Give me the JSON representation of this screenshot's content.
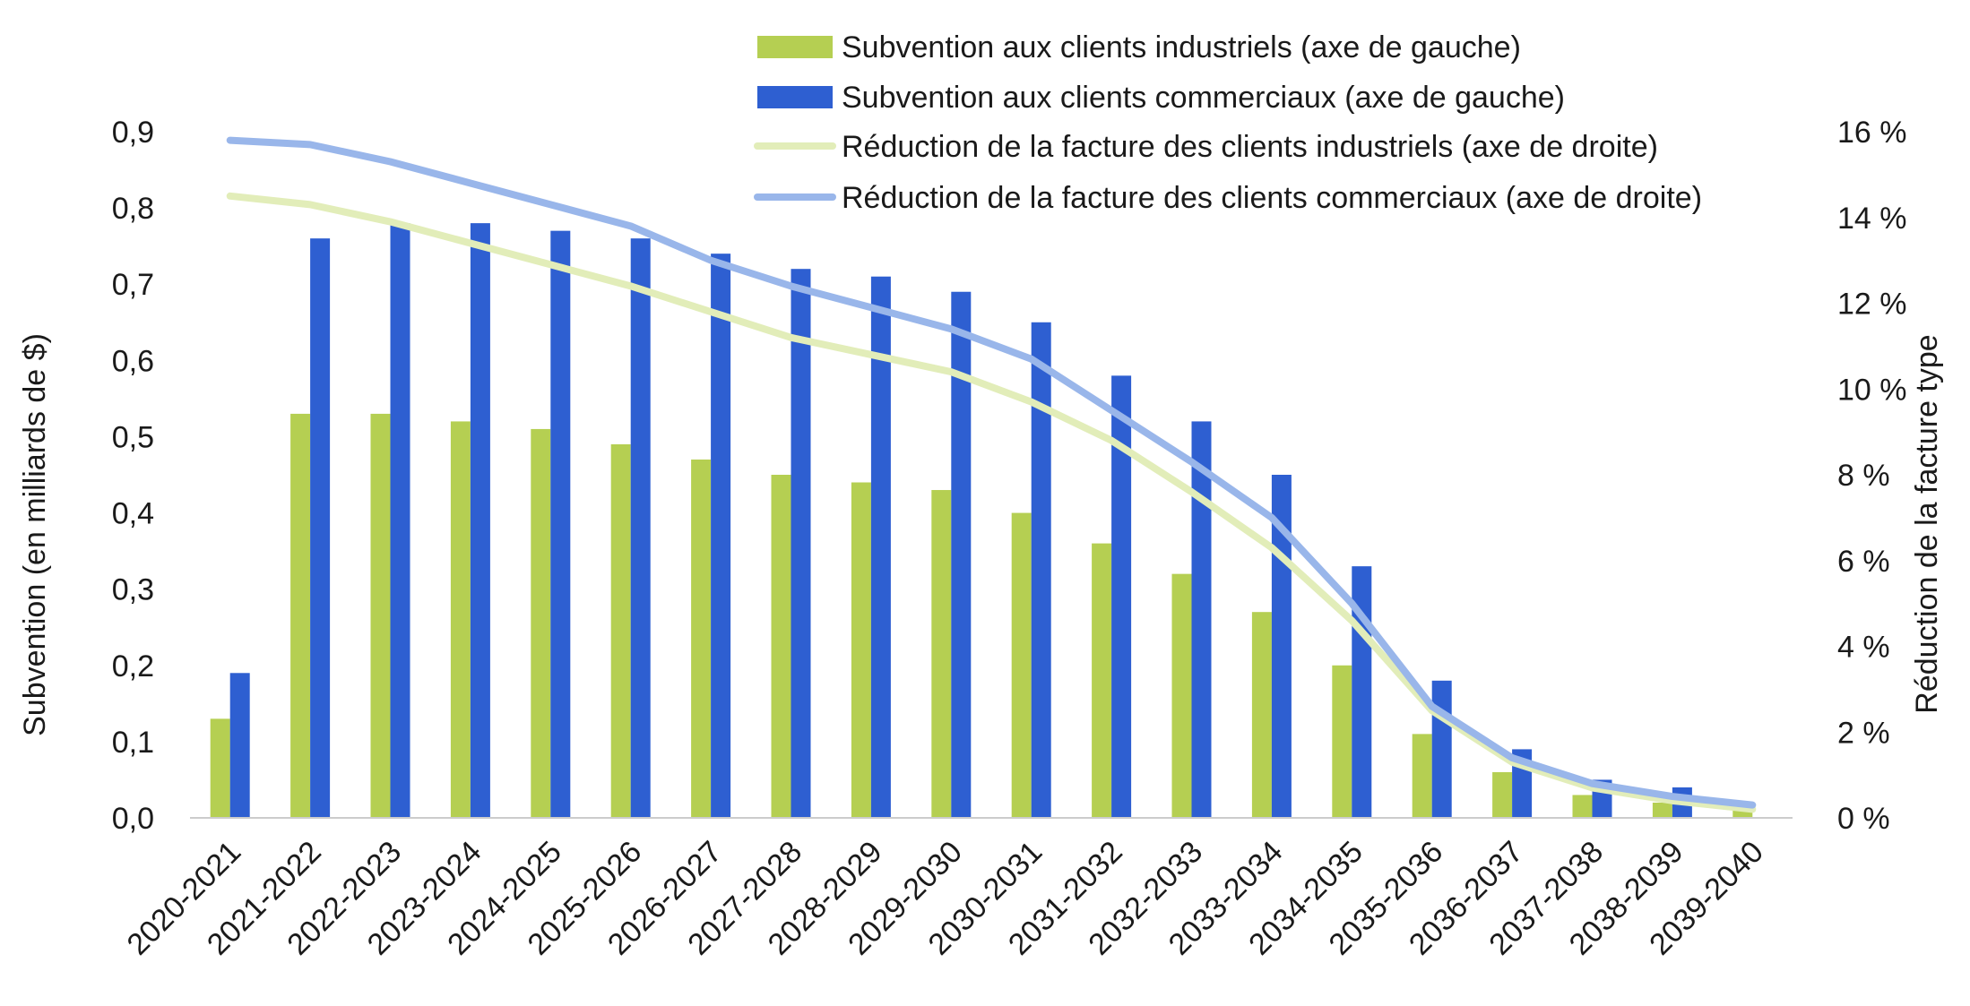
{
  "chart_data": {
    "type": "bar",
    "categories": [
      "2020-2021",
      "2021-2022",
      "2022-2023",
      "2023-2024",
      "2024-2025",
      "2025-2026",
      "2026-2027",
      "2027-2028",
      "2028-2029",
      "2029-2030",
      "2030-2031",
      "2031-2032",
      "2032-2033",
      "2033-2034",
      "2034-2035",
      "2035-2036",
      "2036-2037",
      "2037-2038",
      "2038-2039",
      "2039-2040"
    ],
    "series": [
      {
        "name": "Subvention aux clients industriels (axe de gauche)",
        "kind": "bar",
        "axis": "left",
        "color": "#b5cf52",
        "values": [
          0.13,
          0.53,
          0.53,
          0.52,
          0.51,
          0.49,
          0.47,
          0.45,
          0.44,
          0.43,
          0.4,
          0.36,
          0.32,
          0.27,
          0.2,
          0.11,
          0.06,
          0.03,
          0.02,
          0.01
        ]
      },
      {
        "name": "Subvention aux clients commerciaux (axe de gauche)",
        "kind": "bar",
        "axis": "left",
        "color": "#2e5fd1",
        "values": [
          0.19,
          0.76,
          0.78,
          0.78,
          0.77,
          0.76,
          0.74,
          0.72,
          0.71,
          0.69,
          0.65,
          0.58,
          0.52,
          0.45,
          0.33,
          0.18,
          0.09,
          0.05,
          0.04,
          0.0
        ]
      },
      {
        "name": "Réduction de la facture des clients industriels (axe de droite)",
        "kind": "line",
        "axis": "right",
        "color": "#e2edb9",
        "values": [
          14.5,
          14.3,
          13.9,
          13.4,
          12.9,
          12.4,
          11.8,
          11.2,
          10.8,
          10.4,
          9.7,
          8.8,
          7.6,
          6.3,
          4.6,
          2.5,
          1.3,
          0.7,
          0.4,
          0.2
        ]
      },
      {
        "name": "Réduction de la facture des clients commerciaux (axe de droite)",
        "kind": "line",
        "axis": "right",
        "color": "#99b6ea",
        "values": [
          15.8,
          15.7,
          15.3,
          14.8,
          14.3,
          13.8,
          13.0,
          12.4,
          11.9,
          11.4,
          10.7,
          9.5,
          8.3,
          7.0,
          5.0,
          2.6,
          1.4,
          0.8,
          0.5,
          0.3
        ]
      }
    ],
    "left_axis": {
      "label": "Subvention (en milliards de $)",
      "ticks": [
        "0,0",
        "0,1",
        "0,2",
        "0,3",
        "0,4",
        "0,5",
        "0,6",
        "0,7",
        "0,8",
        "0,9"
      ],
      "ylim": [
        0,
        0.9
      ]
    },
    "right_axis": {
      "label": "Réduction de la facture type",
      "ticks": [
        "0 %",
        "2 %",
        "4 %",
        "6 %",
        "8 %",
        "10 %",
        "12 %",
        "14 %",
        "16 %"
      ],
      "ylim": [
        0,
        16
      ]
    },
    "legend_position": "top-right",
    "grid": false
  }
}
